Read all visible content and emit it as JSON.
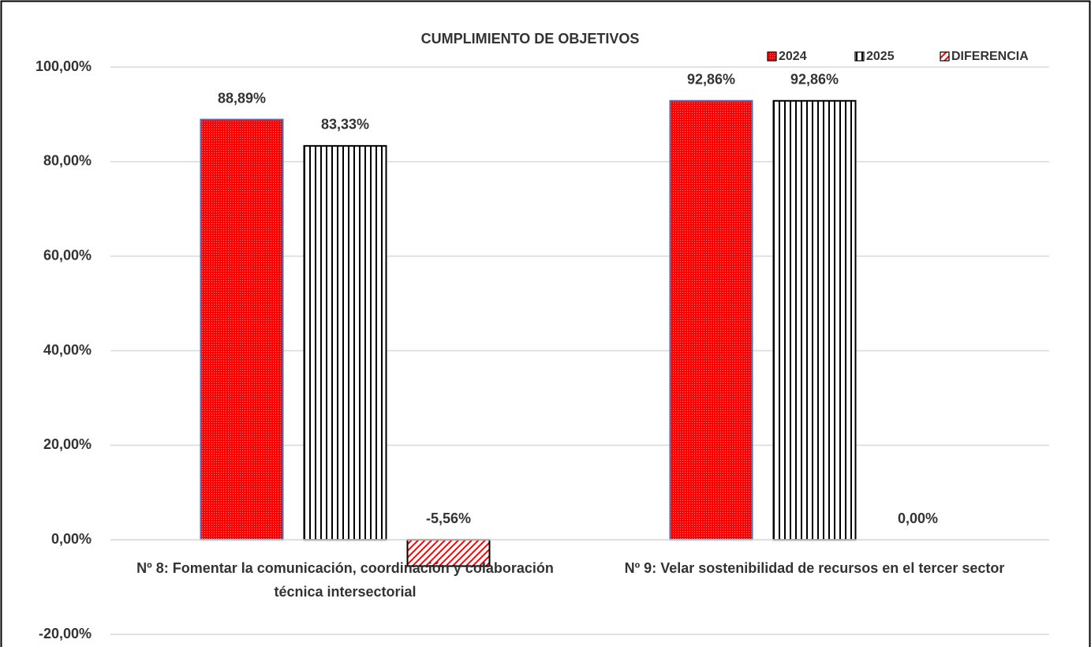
{
  "chart_data": {
    "type": "bar",
    "title": "CUMPLIMIENTO DE OBJETIVOS",
    "categories": [
      "Nº 8: Fomentar la comunicación, coordinación y colaboración técnica intersectorial",
      "Nº 9: Velar sostenibilidad de recursos en el tercer sector"
    ],
    "series": [
      {
        "name": "2024",
        "color": "#ff0000",
        "pattern": "dots",
        "values": [
          88.89,
          92.86
        ],
        "value_labels": [
          "88,89%",
          "92,86%"
        ]
      },
      {
        "name": "2025",
        "color": "#000000",
        "pattern": "vertical",
        "values": [
          83.33,
          92.86
        ],
        "value_labels": [
          "83,33%",
          "92,86%"
        ]
      },
      {
        "name": "DIFERENCIA",
        "color": "#ff0000",
        "pattern": "diagonal",
        "values": [
          -5.56,
          0
        ],
        "value_labels": [
          "-5,56%",
          "0,00%"
        ]
      }
    ],
    "ylim": [
      -20,
      100
    ],
    "yticks": [
      {
        "value": -20,
        "label": "-20,00%"
      },
      {
        "value": 0,
        "label": "0,00%"
      },
      {
        "value": 20,
        "label": "20,00%"
      },
      {
        "value": 40,
        "label": "40,00%"
      },
      {
        "value": 60,
        "label": "60,00%"
      },
      {
        "value": 80,
        "label": "80,00%"
      },
      {
        "value": 100,
        "label": "100,00%"
      }
    ],
    "grid": true,
    "legend": "top-right"
  }
}
